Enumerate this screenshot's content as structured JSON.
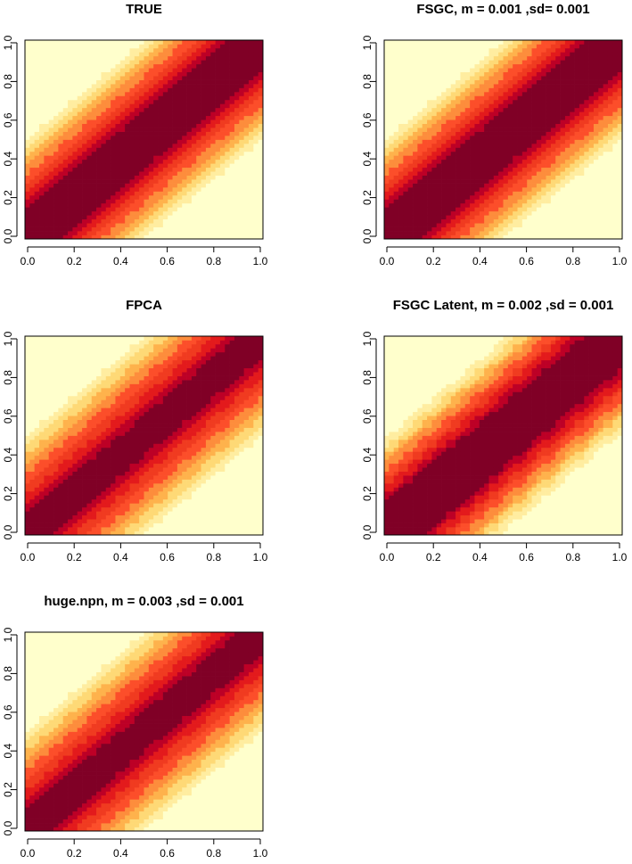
{
  "palette": [
    "#800026",
    "#bd0026",
    "#e31a1c",
    "#f03b20",
    "#fc4e2a",
    "#fd8d3c",
    "#feb24c",
    "#fed976",
    "#ffeda0",
    "#ffffcc"
  ],
  "chart_data": [
    {
      "type": "heatmap",
      "title": "TRUE",
      "xlim": [
        0,
        1
      ],
      "ylim": [
        0,
        1
      ],
      "xticks": [
        "0.0",
        "0.2",
        "0.4",
        "0.6",
        "0.8",
        "1.0"
      ],
      "yticks": [
        "0.0",
        "0.2",
        "0.4",
        "0.6",
        "0.8",
        "1.0"
      ],
      "grid_n": 50,
      "core_width": 0.14,
      "band_step": 0.045
    },
    {
      "type": "heatmap",
      "title": "FSGC, m = 0.001 ,sd= 0.001",
      "xlim": [
        0,
        1
      ],
      "ylim": [
        0,
        1
      ],
      "xticks": [
        "0.0",
        "0.2",
        "0.4",
        "0.6",
        "0.8",
        "1.0"
      ],
      "yticks": [
        "0.0",
        "0.2",
        "0.4",
        "0.6",
        "0.8",
        "1.0"
      ],
      "grid_n": 50,
      "core_width": 0.14,
      "band_step": 0.045
    },
    {
      "type": "heatmap",
      "title": "FPCA",
      "xlim": [
        0,
        1
      ],
      "ylim": [
        0,
        1
      ],
      "xticks": [
        "0.0",
        "0.2",
        "0.4",
        "0.6",
        "0.8",
        "1.0"
      ],
      "yticks": [
        "0.0",
        "0.2",
        "0.4",
        "0.6",
        "0.8",
        "1.0"
      ],
      "grid_n": 50,
      "core_width": 0.1,
      "band_step": 0.05
    },
    {
      "type": "heatmap",
      "title": "FSGC Latent, m = 0.002 ,sd = 0.001",
      "xlim": [
        0,
        1
      ],
      "ylim": [
        0,
        1
      ],
      "xticks": [
        "0.0",
        "0.2",
        "0.4",
        "0.6",
        "0.8",
        "1.0"
      ],
      "yticks": [
        "0.0",
        "0.2",
        "0.4",
        "0.6",
        "0.8",
        "1.0"
      ],
      "grid_n": 50,
      "core_width": 0.16,
      "band_step": 0.04
    },
    {
      "type": "heatmap",
      "title": "huge.npn, m = 0.003 ,sd = 0.001",
      "xlim": [
        0,
        1
      ],
      "ylim": [
        0,
        1
      ],
      "xticks": [
        "0.0",
        "0.2",
        "0.4",
        "0.6",
        "0.8",
        "1.0"
      ],
      "yticks": [
        "0.0",
        "0.2",
        "0.4",
        "0.6",
        "0.8",
        "1.0"
      ],
      "grid_n": 50,
      "core_width": 0.1,
      "band_step": 0.05
    }
  ]
}
